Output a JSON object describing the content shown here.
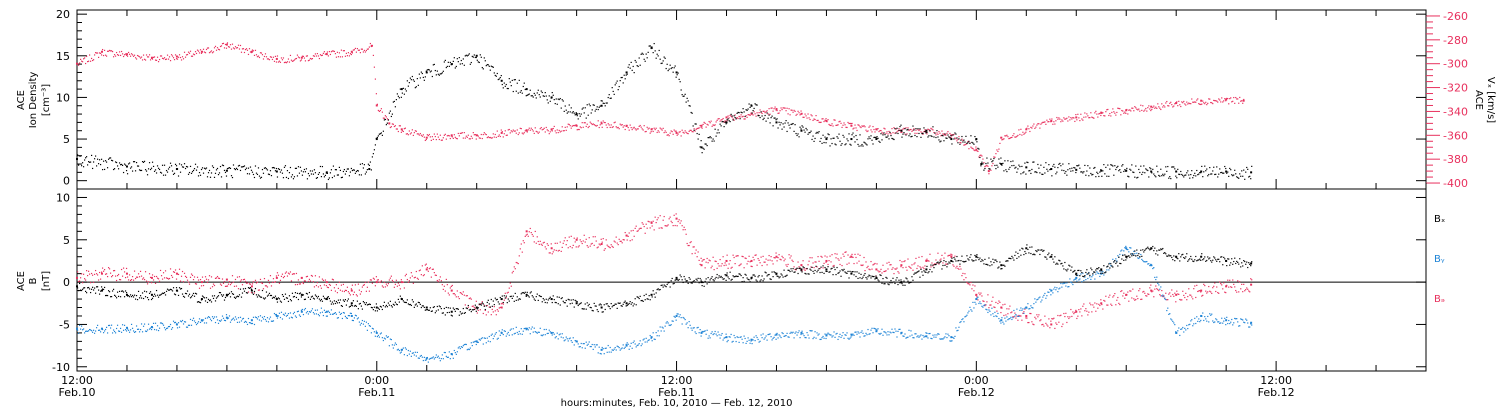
{
  "chart_data": [
    {
      "type": "scatter",
      "panel": "top",
      "ylabel_left": [
        "ACE",
        "Ion Density",
        "[cm⁻³]"
      ],
      "ylabel_right": [
        "ACE",
        "Vₓ [km/s]"
      ],
      "ylim_left": [
        -1,
        20.5
      ],
      "yticks_left": [
        0,
        5,
        10,
        15,
        20
      ],
      "ylim_right": [
        -405,
        -255
      ],
      "yticks_right": [
        -400,
        -380,
        -360,
        -340,
        -320,
        -300,
        -280,
        -260
      ],
      "colors": {
        "density": "#000000",
        "vx": "#e8305d"
      },
      "series": [
        {
          "key": "density",
          "axis": "left",
          "x": [
            0,
            2,
            4,
            6,
            8,
            10,
            11.7,
            12,
            13,
            14,
            15,
            16,
            17,
            18,
            19,
            20,
            21,
            22,
            23,
            24,
            25,
            26,
            27,
            28,
            29,
            30,
            31,
            32,
            33,
            34,
            35,
            36,
            36.2,
            37,
            38,
            39,
            40,
            41,
            42,
            43,
            44,
            45,
            46,
            47
          ],
          "y": [
            2.6,
            1.7,
            1.4,
            1.2,
            1.1,
            1.0,
            1.4,
            5,
            11,
            13,
            14,
            15,
            12,
            11,
            10,
            8,
            9,
            13,
            16,
            13,
            4,
            7,
            9,
            7,
            6,
            5,
            5,
            5,
            6,
            6,
            5,
            5,
            2,
            2,
            1.6,
            1.4,
            1.3,
            1.2,
            1.2,
            1.1,
            1.1,
            1.1,
            1.1,
            1.0
          ]
        },
        {
          "key": "vx",
          "axis": "right",
          "x": [
            0,
            1,
            2,
            3,
            4,
            5,
            6,
            7,
            8,
            9,
            10,
            11,
            11.8,
            12,
            12.5,
            13,
            14,
            15,
            16,
            17,
            18,
            19,
            20,
            21,
            22,
            23,
            24,
            25,
            26,
            27,
            28,
            29,
            30,
            31,
            32,
            33,
            34,
            35,
            36,
            36.5,
            37,
            38,
            39,
            40,
            41,
            42,
            43,
            44,
            45,
            46,
            46.7
          ],
          "y": [
            -300,
            -290,
            -292,
            -295,
            -294,
            -290,
            -284,
            -290,
            -296,
            -295,
            -292,
            -290,
            -285,
            -335,
            -350,
            -355,
            -362,
            -360,
            -360,
            -358,
            -356,
            -355,
            -352,
            -350,
            -352,
            -355,
            -358,
            -352,
            -345,
            -342,
            -338,
            -342,
            -348,
            -352,
            -355,
            -356,
            -356,
            -360,
            -372,
            -390,
            -362,
            -355,
            -348,
            -345,
            -341,
            -339,
            -336,
            -333,
            -331,
            -330,
            -331
          ]
        }
      ]
    },
    {
      "type": "scatter",
      "panel": "bottom",
      "ylabel_left": [
        "ACE",
        "B",
        "[nT]"
      ],
      "ylim": [
        -10.5,
        11
      ],
      "yticks": [
        -10,
        -5,
        0,
        5,
        10
      ],
      "zero_line": true,
      "colors": {
        "bx": "#000000",
        "by": "#1f84d6",
        "bz": "#e8305d"
      },
      "legend": {
        "position": "right",
        "entries": [
          "Bₓ",
          "Bᵧ",
          "Bₔ"
        ]
      },
      "series": [
        {
          "key": "bx",
          "label_index": 0,
          "x": [
            0,
            1,
            2,
            3,
            4,
            5,
            6,
            7,
            8,
            9,
            10,
            11,
            12,
            13,
            14,
            15,
            16,
            17,
            18,
            19,
            20,
            21,
            22,
            23,
            24,
            25,
            26,
            27,
            28,
            29,
            30,
            31,
            32,
            33,
            34,
            35,
            36,
            37,
            38,
            39,
            40,
            41,
            42,
            43,
            44,
            45,
            46,
            47
          ],
          "y": [
            -0.5,
            -1,
            -1.5,
            -1.5,
            -1,
            -2,
            -1.5,
            -1,
            -2,
            -1.5,
            -2,
            -2.5,
            -3,
            -2,
            -3,
            -3.5,
            -3,
            -2,
            -1.5,
            -2,
            -2.5,
            -3,
            -2.5,
            -1.5,
            0.5,
            0,
            0.8,
            0.5,
            1,
            1.5,
            1.5,
            1,
            0.5,
            0,
            1.5,
            2.5,
            3,
            2,
            4,
            3,
            1,
            1.5,
            3,
            4,
            3,
            3,
            2.5,
            2.2
          ]
        },
        {
          "key": "by",
          "label_index": 1,
          "x": [
            0,
            1,
            2,
            3,
            4,
            5,
            6,
            7,
            8,
            9,
            10,
            11,
            12,
            13,
            14,
            15,
            16,
            17,
            18,
            19,
            20,
            21,
            22,
            23,
            24,
            25,
            26,
            27,
            28,
            29,
            30,
            31,
            32,
            33,
            34,
            35,
            36,
            37,
            38,
            39,
            40,
            41,
            42,
            43,
            44,
            45,
            46,
            47
          ],
          "y": [
            -5.5,
            -5.5,
            -5.4,
            -5.3,
            -5,
            -4.5,
            -4.2,
            -4.5,
            -4,
            -3.5,
            -3.5,
            -4,
            -6,
            -8,
            -9,
            -8.5,
            -7,
            -6,
            -5.5,
            -6,
            -7,
            -8,
            -7.5,
            -6.5,
            -4,
            -6,
            -6.5,
            -6.8,
            -6.2,
            -6,
            -6.3,
            -6.2,
            -5.8,
            -6,
            -6.4,
            -6.5,
            -2,
            -4.5,
            -3,
            -1,
            0.5,
            1,
            4,
            2,
            -6,
            -4,
            -4.5,
            -4.8
          ]
        },
        {
          "key": "bz",
          "label_index": 2,
          "x": [
            0,
            1,
            2,
            3,
            4,
            5,
            6,
            7,
            8,
            9,
            10,
            11,
            12,
            13,
            14,
            15,
            16,
            17,
            18,
            19,
            20,
            21,
            22,
            23,
            24,
            25,
            26,
            27,
            28,
            29,
            30,
            31,
            32,
            33,
            34,
            35,
            36,
            37,
            38,
            39,
            40,
            41,
            42,
            43,
            44,
            45,
            46,
            47
          ],
          "y": [
            0.5,
            1,
            1,
            0.5,
            1,
            0,
            0.3,
            -0.5,
            0.5,
            0.5,
            0,
            -1,
            0,
            0,
            1.5,
            -1,
            -3,
            -3,
            6,
            4,
            5,
            4.5,
            5.5,
            7,
            7.5,
            2,
            2.5,
            2.5,
            3,
            2,
            2.5,
            3,
            1.5,
            2,
            2.5,
            3,
            -1.5,
            -3,
            -4,
            -5,
            -3.5,
            -2.5,
            -1.5,
            -1,
            -1.5,
            -1,
            -0.5,
            -0.3
          ]
        }
      ]
    }
  ],
  "x_axis": {
    "range_hours": [
      0,
      54
    ],
    "tick_labels": [
      {
        "hour": 0,
        "time": "12:00",
        "date": "Feb.10"
      },
      {
        "hour": 12,
        "time": "0:00",
        "date": "Feb.11"
      },
      {
        "hour": 24,
        "time": "12:00",
        "date": "Feb.11"
      },
      {
        "hour": 36,
        "time": "0:00",
        "date": "Feb.12"
      },
      {
        "hour": 48,
        "time": "12:00",
        "date": "Feb.12"
      }
    ],
    "minor_tick_every_hours": 2,
    "xlabel": "hours:minutes, Feb. 10, 2010 — Feb. 12, 2010"
  }
}
